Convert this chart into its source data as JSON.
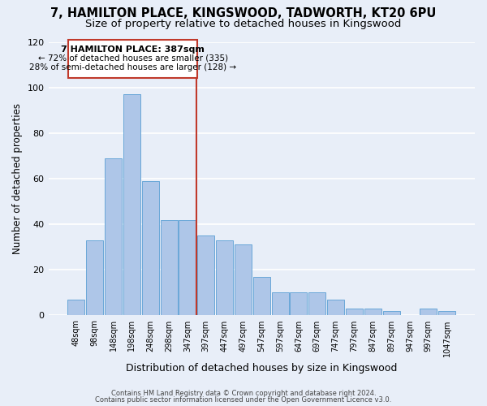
{
  "title": "7, HAMILTON PLACE, KINGSWOOD, TADWORTH, KT20 6PU",
  "subtitle": "Size of property relative to detached houses in Kingswood",
  "xlabel": "Distribution of detached houses by size in Kingswood",
  "ylabel": "Number of detached properties",
  "bin_labels": [
    "48sqm",
    "98sqm",
    "148sqm",
    "198sqm",
    "248sqm",
    "298sqm",
    "347sqm",
    "397sqm",
    "447sqm",
    "497sqm",
    "547sqm",
    "597sqm",
    "647sqm",
    "697sqm",
    "747sqm",
    "797sqm",
    "847sqm",
    "897sqm",
    "947sqm",
    "997sqm",
    "1047sqm"
  ],
  "bar_values": [
    7,
    33,
    69,
    97,
    59,
    42,
    42,
    35,
    33,
    31,
    17,
    10,
    10,
    10,
    7,
    3,
    3,
    2,
    0,
    3,
    2
  ],
  "bar_color": "#aec6e8",
  "bar_edge_color": "#5a9fd4",
  "reference_line_index": 7,
  "annotation_title": "7 HAMILTON PLACE: 387sqm",
  "annotation_line1": "← 72% of detached houses are smaller (335)",
  "annotation_line2": "28% of semi-detached houses are larger (128) →",
  "annotation_box_edge": "#c0392b",
  "ylim": [
    0,
    120
  ],
  "yticks": [
    0,
    20,
    40,
    60,
    80,
    100,
    120
  ],
  "footer1": "Contains HM Land Registry data © Crown copyright and database right 2024.",
  "footer2": "Contains public sector information licensed under the Open Government Licence v3.0.",
  "bg_color": "#e8eef8",
  "grid_color": "#ffffff",
  "title_fontsize": 10.5,
  "subtitle_fontsize": 9.5
}
